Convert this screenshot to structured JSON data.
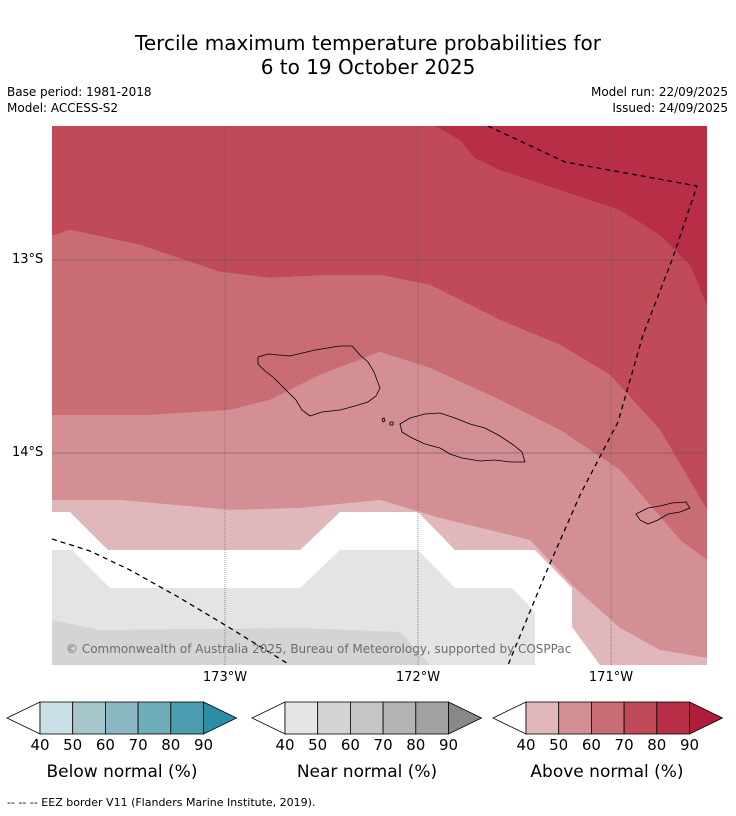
{
  "title_line1": "Tercile maximum temperature probabilities for",
  "title_line2": "6 to 19 October 2025",
  "base_period": "Base period: 1981-2018",
  "model": "Model: ACCESS-S2",
  "model_run": "Model run: 22/09/2025",
  "issued": "Issued: 24/09/2025",
  "lat_labels": [
    "13°S",
    "14°S"
  ],
  "lon_labels": [
    "173°W",
    "172°W",
    "171°W"
  ],
  "copyright": "© Commonwealth of Australia 2025, Bureau of Meteorology, supported by COSPPac",
  "colorbars": [
    {
      "title": "Below normal (%)",
      "ticks": [
        "40",
        "50",
        "60",
        "70",
        "80",
        "90"
      ],
      "colors": [
        "#ffffff",
        "#c9e0e6",
        "#a6c6cc",
        "#8ab7c1",
        "#6fadbb",
        "#4a9dae",
        "#2a8ea5"
      ]
    },
    {
      "title": "Near normal (%)",
      "ticks": [
        "40",
        "50",
        "60",
        "70",
        "80",
        "90"
      ],
      "colors": [
        "#ffffff",
        "#e6e6e6",
        "#d4d4d4",
        "#c5c5c5",
        "#b4b4b4",
        "#a2a2a2",
        "#888888"
      ]
    },
    {
      "title": "Above normal (%)",
      "ticks": [
        "40",
        "50",
        "60",
        "70",
        "80",
        "90"
      ],
      "colors": [
        "#ffffff",
        "#e0b8bc",
        "#d48f95",
        "#c96c74",
        "#c04a57",
        "#b82e47",
        "#b01c3c"
      ]
    }
  ],
  "footnote": "--  --  -- EEZ border V11 (Flanders Marine Institute, 2019)."
}
